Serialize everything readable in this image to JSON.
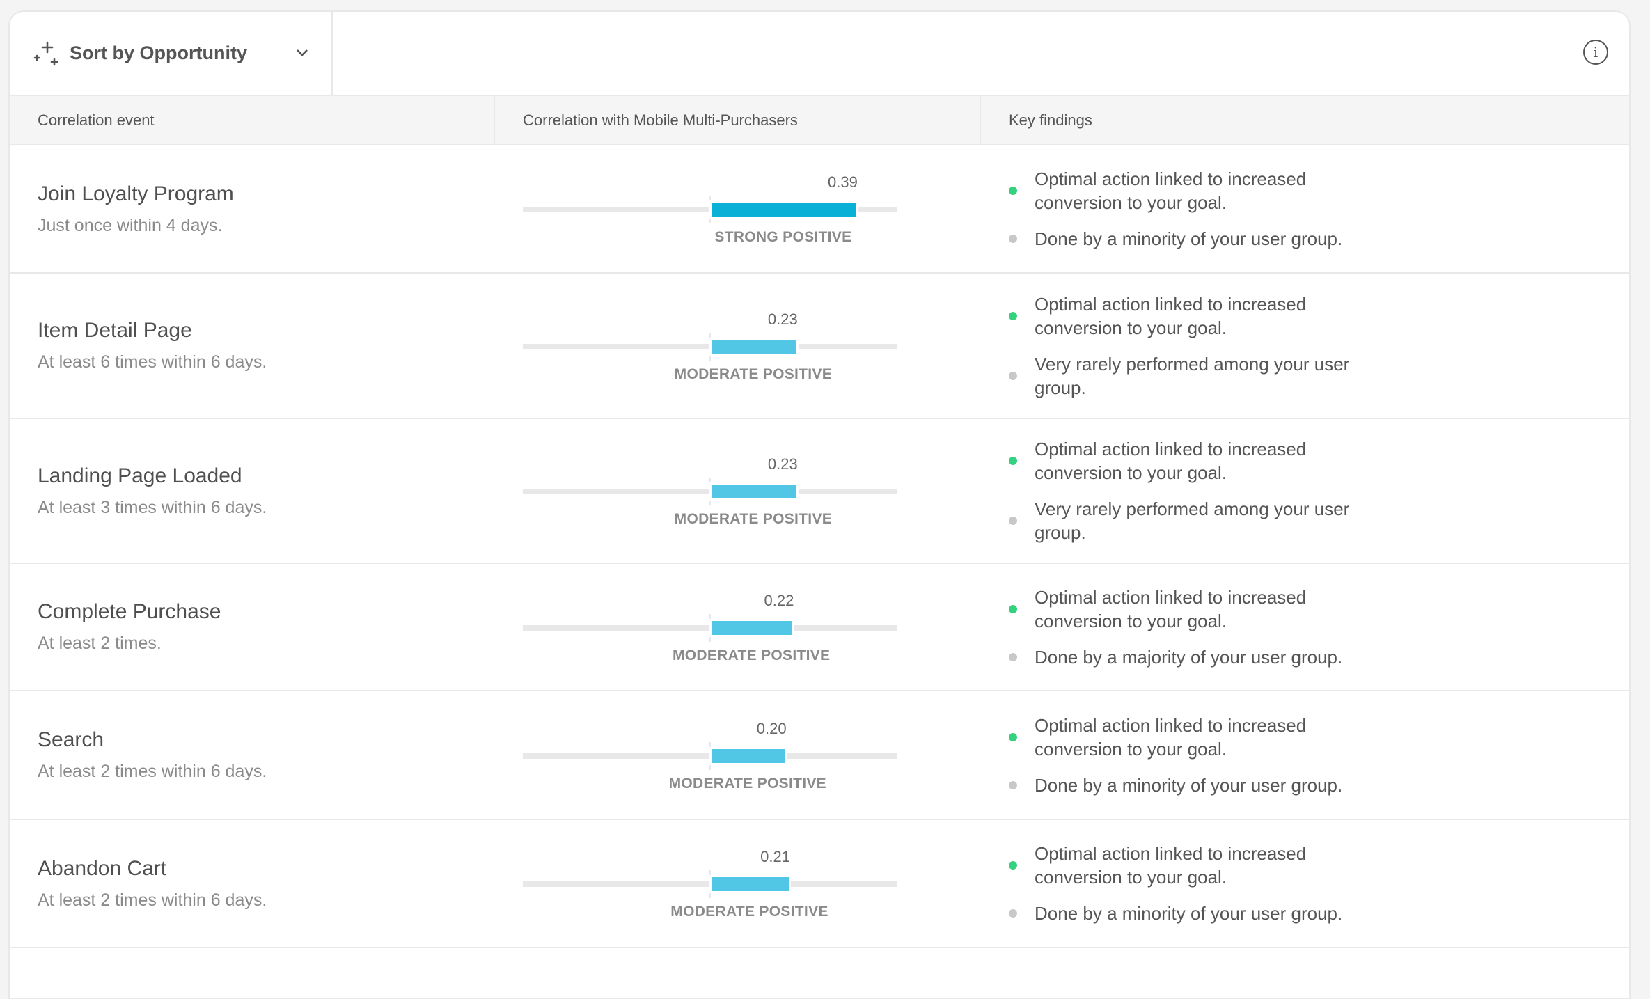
{
  "toolbar": {
    "sort_label": "Sort by Opportunity"
  },
  "columns": {
    "event": "Correlation event",
    "correlation": "Correlation with Mobile Multi-Purchasers",
    "findings": "Key findings"
  },
  "colors": {
    "strong": "#0bb0d6",
    "moderate": "#52c6e5",
    "positive_dot": "#34d17f",
    "neutral_dot": "#c8c8c8",
    "track": "#e8e8e8"
  },
  "scale": {
    "min": -0.5,
    "max": 0.5
  },
  "rows": [
    {
      "event": "Join Loyalty Program",
      "criteria": "Just once within 4 days.",
      "value": 0.39,
      "value_label": "0.39",
      "strength": "strong",
      "category": "STRONG POSITIVE",
      "findings": [
        {
          "type": "positive",
          "text": "Optimal action linked to increased conversion to your goal."
        },
        {
          "type": "neutral",
          "text": "Done by a minority of your user group."
        }
      ]
    },
    {
      "event": "Item Detail Page",
      "criteria": "At least 6 times within 6 days.",
      "value": 0.23,
      "value_label": "0.23",
      "strength": "moderate",
      "category": "MODERATE POSITIVE",
      "findings": [
        {
          "type": "positive",
          "text": "Optimal action linked to increased conversion to your goal."
        },
        {
          "type": "neutral",
          "text": "Very rarely performed among your user group."
        }
      ]
    },
    {
      "event": "Landing Page Loaded",
      "criteria": "At least 3 times within 6 days.",
      "value": 0.23,
      "value_label": "0.23",
      "strength": "moderate",
      "category": "MODERATE POSITIVE",
      "findings": [
        {
          "type": "positive",
          "text": "Optimal action linked to increased conversion to your goal."
        },
        {
          "type": "neutral",
          "text": "Very rarely performed among your user group."
        }
      ]
    },
    {
      "event": "Complete Purchase",
      "criteria": "At least 2 times.",
      "value": 0.22,
      "value_label": "0.22",
      "strength": "moderate",
      "category": "MODERATE POSITIVE",
      "findings": [
        {
          "type": "positive",
          "text": "Optimal action linked to increased conversion to your goal."
        },
        {
          "type": "neutral",
          "text": "Done by a majority of your user group."
        }
      ]
    },
    {
      "event": "Search",
      "criteria": "At least 2 times within 6 days.",
      "value": 0.2,
      "value_label": "0.20",
      "strength": "moderate",
      "category": "MODERATE POSITIVE",
      "findings": [
        {
          "type": "positive",
          "text": "Optimal action linked to increased conversion to your goal."
        },
        {
          "type": "neutral",
          "text": "Done by a minority of your user group."
        }
      ]
    },
    {
      "event": "Abandon Cart",
      "criteria": "At least 2 times within 6 days.",
      "value": 0.21,
      "value_label": "0.21",
      "strength": "moderate",
      "category": "MODERATE POSITIVE",
      "findings": [
        {
          "type": "positive",
          "text": "Optimal action linked to increased conversion to your goal."
        },
        {
          "type": "neutral",
          "text": "Done by a minority of your user group."
        }
      ]
    }
  ]
}
